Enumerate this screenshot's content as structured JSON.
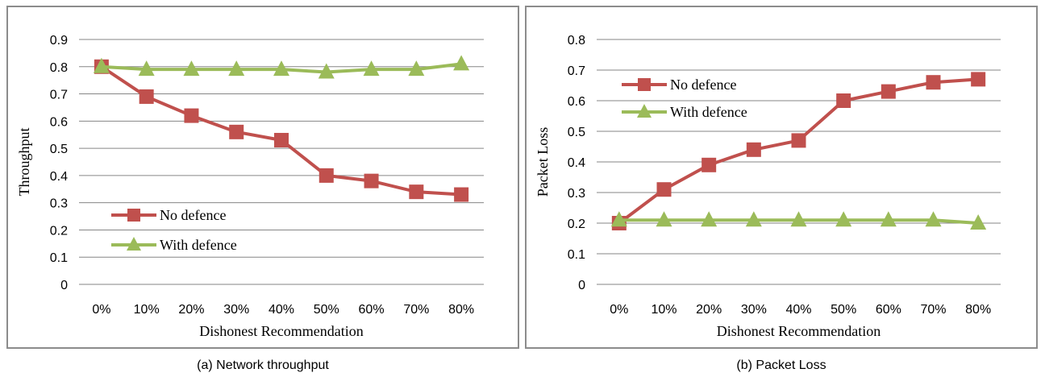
{
  "colors": {
    "no_defence": "#c0504d",
    "with_defence": "#9bbb59",
    "grid": "#868686",
    "frame": "#8c8c8c"
  },
  "captions": {
    "a": "(a) Network throughput",
    "b": "(b) Packet Loss"
  },
  "chart_data": [
    {
      "type": "line",
      "xlabel": "Dishonest Recommendation",
      "ylabel": "Throughput",
      "categories": [
        "0%",
        "10%",
        "20%",
        "30%",
        "40%",
        "50%",
        "60%",
        "70%",
        "80%"
      ],
      "ylim": [
        0,
        0.9
      ],
      "yticks": [
        "0",
        "0.1",
        "0.2",
        "0.3",
        "0.4",
        "0.5",
        "0.6",
        "0.7",
        "0.8",
        "0.9"
      ],
      "grid": true,
      "legend_position": "bottom-left",
      "series": [
        {
          "name": "No defence",
          "marker": "square",
          "color": "#c0504d",
          "values": [
            0.8,
            0.69,
            0.62,
            0.56,
            0.53,
            0.4,
            0.38,
            0.34,
            0.33
          ]
        },
        {
          "name": "With defence",
          "marker": "triangle",
          "color": "#9bbb59",
          "values": [
            0.8,
            0.79,
            0.79,
            0.79,
            0.79,
            0.78,
            0.79,
            0.79,
            0.81
          ]
        }
      ]
    },
    {
      "type": "line",
      "xlabel": "Dishonest Recommendation",
      "ylabel": "Packet Loss",
      "categories": [
        "0%",
        "10%",
        "20%",
        "30%",
        "40%",
        "50%",
        "60%",
        "70%",
        "80%"
      ],
      "ylim": [
        0,
        0.8
      ],
      "yticks": [
        "0",
        "0.1",
        "0.2",
        "0.3",
        "0.4",
        "0.5",
        "0.6",
        "0.7",
        "0.8"
      ],
      "grid": true,
      "legend_position": "top-left",
      "series": [
        {
          "name": "No defence",
          "marker": "square",
          "color": "#c0504d",
          "values": [
            0.2,
            0.31,
            0.39,
            0.44,
            0.47,
            0.6,
            0.63,
            0.66,
            0.67
          ]
        },
        {
          "name": "With defence",
          "marker": "triangle",
          "color": "#9bbb59",
          "values": [
            0.21,
            0.21,
            0.21,
            0.21,
            0.21,
            0.21,
            0.21,
            0.21,
            0.2
          ]
        }
      ]
    }
  ]
}
